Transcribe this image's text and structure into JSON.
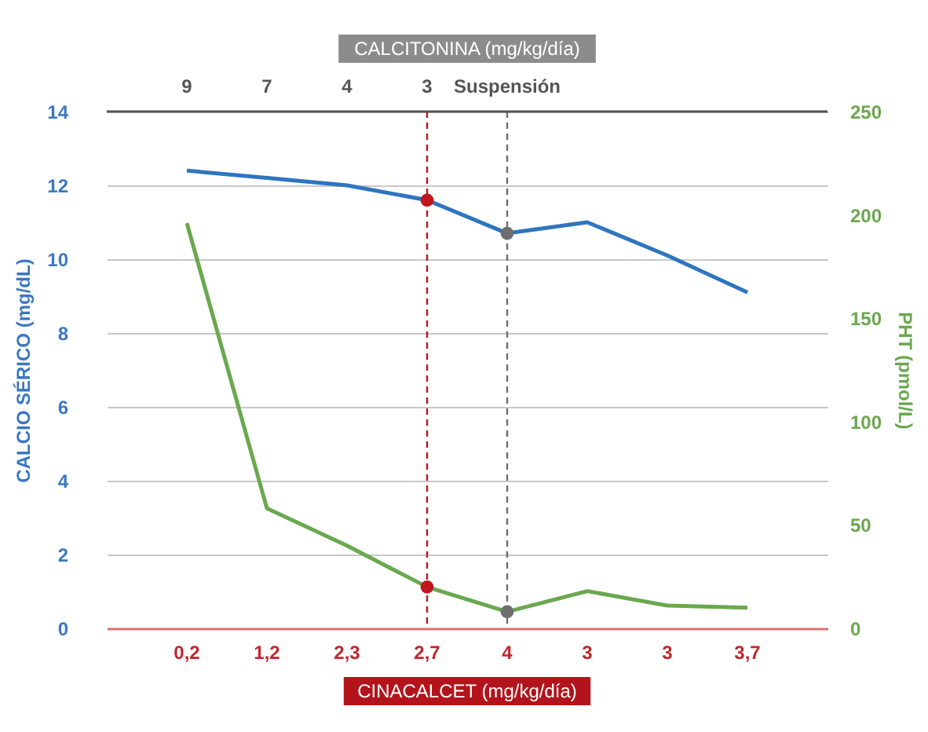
{
  "chart_data": {
    "type": "line",
    "xlabel": "CINACALCET (mg/kg/día)",
    "x2label": "CALCITONINA (mg/kg/día)",
    "ylabel": "CALCIO SÉRICO (mg/dL)",
    "y2label": "PHT (pmol/L)",
    "categories": [
      "0,2",
      "1,2",
      "2,3",
      "2,7",
      "4",
      "3",
      "3",
      "3,7"
    ],
    "series": [
      {
        "color": "#2e75c0",
        "values": [
          12.4,
          12.2,
          12.0,
          11.6,
          10.7,
          11.0,
          10.1,
          9.1
        ]
      },
      {
        "axis": "y2",
        "color": "#6aa84f",
        "values": [
          196,
          58,
          40,
          20,
          8,
          18,
          11,
          10
        ]
      },
      {
        "type": "scatter",
        "marker": "circle",
        "x": [
          "2,7",
          "4"
        ],
        "colors": [
          "#c0161e",
          "#6e6e6e"
        ],
        "values": [
          11.6,
          10.7
        ]
      },
      {
        "type": "scatter",
        "marker": "circle",
        "axis": "y2",
        "x": [
          "2,7",
          "4"
        ],
        "colors": [
          "#c0161e",
          "#6e6e6e"
        ],
        "values": [
          20,
          8
        ]
      }
    ],
    "ylim": [
      0,
      14
    ],
    "yticks": [
      0,
      2,
      4,
      6,
      8,
      10,
      12,
      14
    ],
    "y2lim": [
      0,
      250
    ],
    "y2ticks": [
      0,
      50,
      100,
      150,
      200,
      250
    ],
    "ref_lines": [
      {
        "axis": "x",
        "value": "2,7",
        "color": "#c0161e",
        "line_style": "dashed"
      },
      {
        "axis": "x",
        "value": "4",
        "color": "#6e6e6e",
        "line_style": "dashed"
      }
    ],
    "annotations": [
      "9",
      "7",
      "4",
      "3",
      "Suspensión"
    ],
    "grid": "y",
    "line_style": "solid"
  }
}
